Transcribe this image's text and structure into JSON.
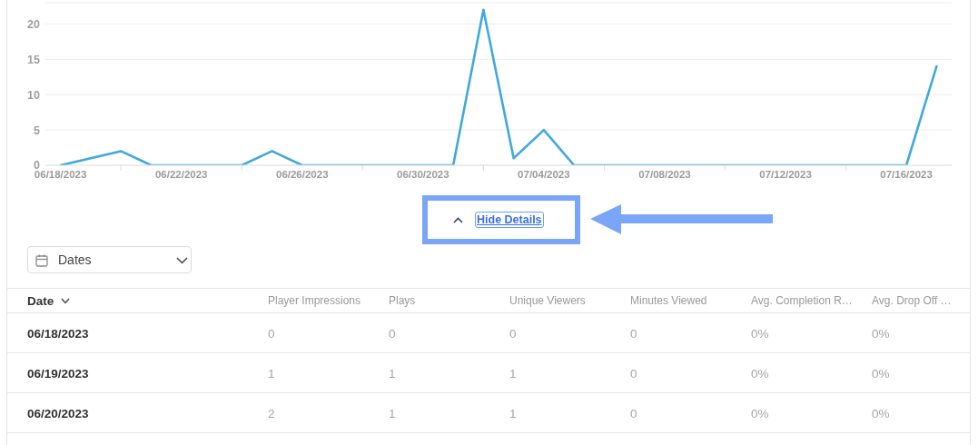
{
  "chart_data": [
    {
      "type": "line",
      "x": [
        "2023-06-18",
        "2023-06-19",
        "2023-06-20",
        "2023-06-21",
        "2023-06-22",
        "2023-06-23",
        "2023-06-24",
        "2023-06-25",
        "2023-06-26",
        "2023-06-27",
        "2023-06-28",
        "2023-06-29",
        "2023-06-30",
        "2023-07-01",
        "2023-07-02",
        "2023-07-03",
        "2023-07-04",
        "2023-07-05",
        "2023-07-06",
        "2023-07-07",
        "2023-07-08",
        "2023-07-09",
        "2023-07-10",
        "2023-07-11",
        "2023-07-12",
        "2023-07-13",
        "2023-07-14",
        "2023-07-15",
        "2023-07-16",
        "2023-07-17"
      ],
      "values": [
        0,
        1,
        2,
        0,
        0,
        0,
        0,
        2,
        0,
        0,
        0,
        0,
        0,
        0,
        22,
        1,
        5,
        0,
        0,
        0,
        0,
        0,
        0,
        0,
        0,
        0,
        0,
        0,
        0,
        14
      ],
      "color": "#3fa9dd",
      "xlim": [
        "2023-06-17T12:00",
        "2023-07-17T12:00"
      ],
      "ylim": [
        0,
        23
      ],
      "xticks": [
        {
          "value": "2023-06-18",
          "label": "06/18/2023"
        },
        {
          "value": "2023-06-20",
          "label": null
        },
        {
          "value": "2023-06-22",
          "label": "06/22/2023"
        },
        {
          "value": "2023-06-24",
          "label": null
        },
        {
          "value": "2023-06-26",
          "label": "06/26/2023"
        },
        {
          "value": "2023-06-28",
          "label": null
        },
        {
          "value": "2023-06-30",
          "label": "06/30/2023"
        },
        {
          "value": "2023-07-02",
          "label": null
        },
        {
          "value": "2023-07-04",
          "label": "07/04/2023"
        },
        {
          "value": "2023-07-06",
          "label": null
        },
        {
          "value": "2023-07-08",
          "label": "07/08/2023"
        },
        {
          "value": "2023-07-10",
          "label": null
        },
        {
          "value": "2023-07-12",
          "label": "07/12/2023"
        },
        {
          "value": "2023-07-14",
          "label": null
        },
        {
          "value": "2023-07-16",
          "label": "07/16/2023"
        }
      ],
      "yticks": [
        0,
        5,
        10,
        15,
        20
      ],
      "grid": "y"
    },
    {
      "type": "other",
      "annotations": [
        "Hide Details",
        "Dates"
      ],
      "ylabel": "Date",
      "categories": [
        "Player Impressions",
        "Plays",
        "Unique Viewers",
        "Minutes Viewed",
        "Avg. Completion R…",
        "Avg. Drop Off …"
      ],
      "y_categories": [
        "06/18/2023",
        "06/19/2023",
        "06/20/2023"
      ],
      "cell_labels": [
        [
          "0",
          "0",
          "0",
          "0",
          "0%",
          "0%"
        ],
        [
          "1",
          "1",
          "1",
          "0",
          "0%",
          "0%"
        ],
        [
          "2",
          "1",
          "1",
          "0",
          "0%",
          "0%"
        ]
      ]
    }
  ]
}
